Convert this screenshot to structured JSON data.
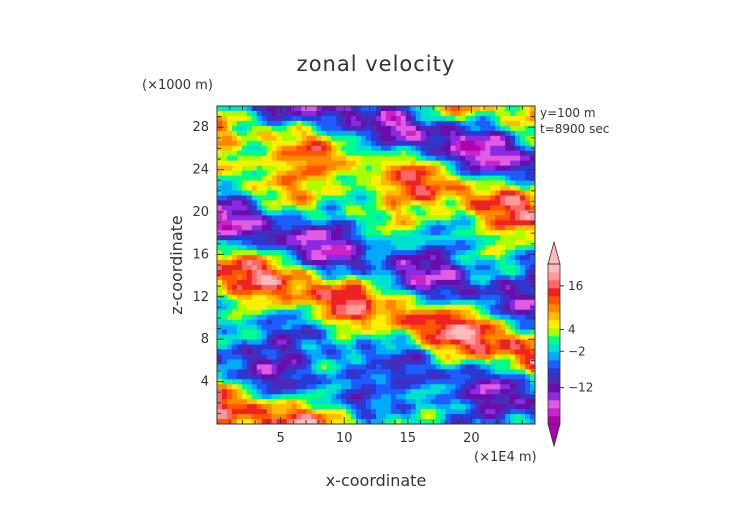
{
  "chart_data": {
    "type": "heatmap",
    "title": "zonal velocity",
    "xlabel": "x-coordinate",
    "ylabel": "z-coordinate",
    "x_unit": "(×1E4 m)",
    "y_unit": "(×1000 m)",
    "annotations": [
      "y=100 m",
      "t=8900 sec"
    ],
    "xlim": [
      0,
      25
    ],
    "ylim": [
      0,
      30
    ],
    "x_ticks": [
      5,
      10,
      15,
      20
    ],
    "y_ticks": [
      4,
      8,
      12,
      16,
      20,
      24,
      28
    ],
    "colorbar": {
      "tick_labels": [
        "16",
        "4",
        "−2",
        "−12"
      ],
      "tick_values": [
        16,
        4,
        -2,
        -12
      ],
      "range": [
        -22,
        22
      ],
      "colors": [
        "#b000b0",
        "#cc22cc",
        "#e05ce0",
        "#8a2be2",
        "#6a0dad",
        "#4a2ab8",
        "#2a3ad0",
        "#1e5cff",
        "#00aaff",
        "#00e0d0",
        "#00ff88",
        "#aaff00",
        "#ffee00",
        "#ffbb00",
        "#ff8800",
        "#ff5500",
        "#ee2222",
        "#ff6666",
        "#ff9999",
        "#ffbbbb"
      ]
    }
  }
}
